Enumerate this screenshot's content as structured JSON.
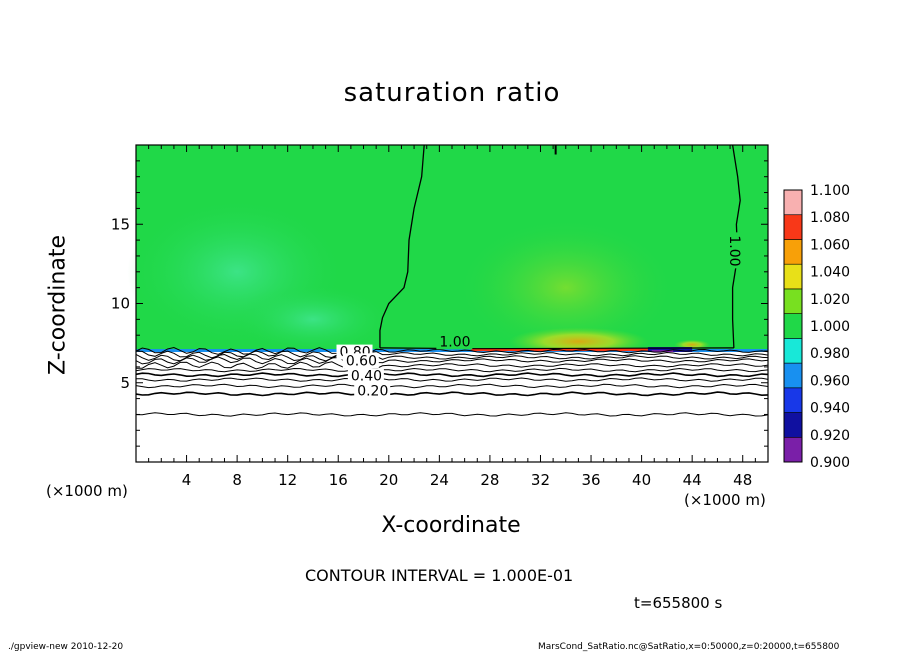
{
  "chart_data": {
    "type": "heatmap",
    "title": "saturation ratio",
    "xlabel": "X-coordinate",
    "ylabel": "Z-coordinate",
    "x_unit": "(×1000 m)",
    "z_unit": "(×1000 m)",
    "xlim": [
      0,
      50
    ],
    "ylim": [
      0,
      20
    ],
    "x_ticks": [
      4,
      8,
      12,
      16,
      20,
      24,
      28,
      32,
      36,
      40,
      44,
      48
    ],
    "y_ticks": [
      5,
      10,
      15
    ],
    "colorbar": {
      "levels": [
        "0.900",
        "0.920",
        "0.940",
        "0.960",
        "0.980",
        "1.000",
        "1.020",
        "1.040",
        "1.060",
        "1.080",
        "1.100"
      ],
      "colors": [
        "#7a1fa8",
        "#1010a0",
        "#1838e8",
        "#1890f0",
        "#18e8d8",
        "#20d848",
        "#78e020",
        "#e8e018",
        "#f8a008",
        "#f83818",
        "#f88080",
        "#f8b0b0"
      ]
    },
    "contour_interval_text": "CONTOUR INTERVAL = 1.000E-01",
    "contour_labels": [
      "1.00",
      "1.00",
      "0.80",
      "0.60",
      "0.40",
      "0.20"
    ],
    "time_text": "t=655800 s"
  },
  "footer": {
    "left": "./gpview-new   2010-12-20",
    "right": "MarsCond_SatRatio.nc@SatRatio,x=0:50000,z=0:20000,t=655800"
  }
}
